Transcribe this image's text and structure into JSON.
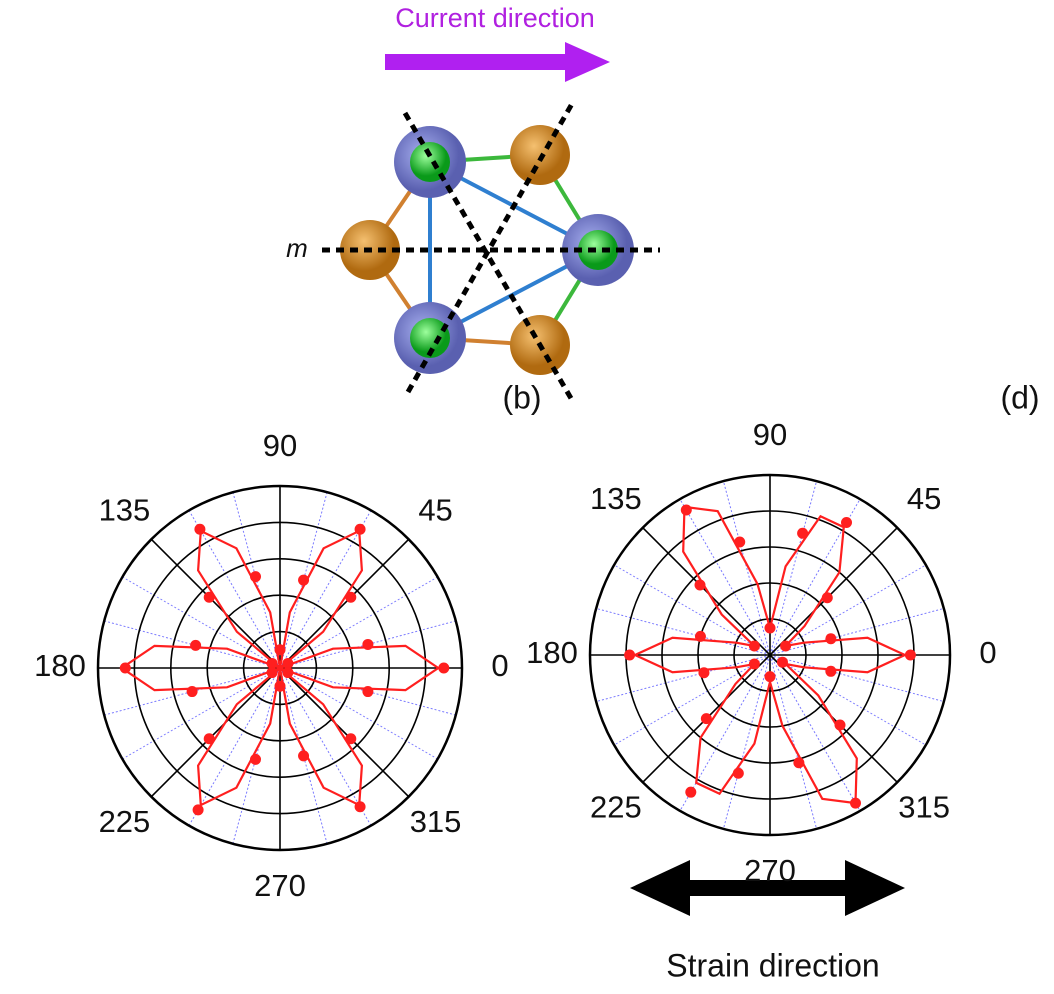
{
  "figure": {
    "current_direction": "Current direction",
    "mirror_label": "m",
    "panel_b": "(b)",
    "panel_d": "(d)",
    "strain_direction": "Strain direction"
  },
  "chart_data": [
    {
      "type": "polar",
      "color": "#ff1f1f",
      "theta": [
        0,
        15,
        30,
        45,
        60,
        75,
        90,
        105,
        120,
        135,
        150,
        165,
        180,
        195,
        210,
        225,
        240,
        255,
        270,
        285,
        300,
        315,
        330,
        345
      ],
      "values": [
        0.9,
        0.5,
        0.05,
        0.55,
        0.88,
        0.5,
        0.1,
        0.52,
        0.88,
        0.55,
        0.05,
        0.48,
        0.85,
        0.5,
        0.05,
        0.55,
        0.9,
        0.52,
        0.1,
        0.5,
        0.88,
        0.55,
        0.05,
        0.5
      ],
      "fit": {
        "theta": [
          0,
          10,
          20,
          30,
          40,
          50,
          60,
          70,
          80,
          90,
          100,
          110,
          120,
          130,
          140,
          150,
          160,
          170,
          180,
          190,
          200,
          210,
          220,
          230,
          240,
          250,
          260,
          270,
          280,
          290,
          300,
          310,
          320,
          330,
          340,
          350
        ],
        "values": [
          0.87,
          0.7,
          0.31,
          0,
          0.31,
          0.7,
          0.87,
          0.7,
          0.31,
          0,
          0.31,
          0.7,
          0.87,
          0.7,
          0.31,
          0,
          0.31,
          0.7,
          0.87,
          0.7,
          0.31,
          0,
          0.31,
          0.7,
          0.87,
          0.7,
          0.31,
          0,
          0.31,
          0.7,
          0.87,
          0.7,
          0.31,
          0,
          0.31,
          0.7
        ]
      },
      "rlim": [
        0,
        1
      ],
      "rticks": [
        0.2,
        0.4,
        0.6,
        0.8,
        1
      ],
      "thetaticks": [
        0,
        45,
        90,
        135,
        180,
        225,
        270,
        315
      ],
      "minor_thetaticks": [
        15,
        30,
        60,
        75,
        105,
        120,
        150,
        165,
        195,
        210,
        240,
        255,
        285,
        300,
        330,
        345
      ]
    },
    {
      "type": "polar",
      "color": "#ff1f1f",
      "theta": [
        0,
        15,
        30,
        45,
        60,
        75,
        90,
        105,
        120,
        135,
        150,
        165,
        180,
        195,
        210,
        225,
        240,
        255,
        270,
        285,
        300,
        315,
        330,
        345
      ],
      "values": [
        0.78,
        0.35,
        0.1,
        0.45,
        0.85,
        0.7,
        0.15,
        0.65,
        0.93,
        0.55,
        0.1,
        0.4,
        0.78,
        0.38,
        0.1,
        0.5,
        0.88,
        0.68,
        0.12,
        0.62,
        0.95,
        0.55,
        0.08,
        0.35
      ],
      "fit": {
        "theta": [
          0,
          10,
          20,
          30,
          40,
          50,
          60,
          70,
          80,
          90,
          100,
          110,
          120,
          130,
          140,
          150,
          160,
          170,
          180,
          190,
          200,
          210,
          220,
          230,
          240,
          250,
          260,
          270,
          280,
          290,
          300,
          310,
          320,
          330,
          340,
          350
        ],
        "values": [
          0.75,
          0.55,
          0.2,
          0.1,
          0.25,
          0.6,
          0.82,
          0.82,
          0.5,
          0.15,
          0.4,
          0.85,
          0.95,
          0.75,
          0.35,
          0.1,
          0.2,
          0.55,
          0.75,
          0.55,
          0.2,
          0.1,
          0.25,
          0.6,
          0.82,
          0.82,
          0.5,
          0.15,
          0.4,
          0.85,
          0.95,
          0.75,
          0.35,
          0.1,
          0.2,
          0.55
        ]
      },
      "rlim": [
        0,
        1
      ],
      "rticks": [
        0.2,
        0.4,
        0.6,
        0.8,
        1
      ],
      "thetaticks": [
        0,
        45,
        90,
        135,
        180,
        225,
        270,
        315
      ],
      "minor_thetaticks": [
        15,
        30,
        60,
        75,
        105,
        120,
        150,
        165,
        195,
        210,
        240,
        255,
        285,
        300,
        330,
        345
      ]
    }
  ]
}
